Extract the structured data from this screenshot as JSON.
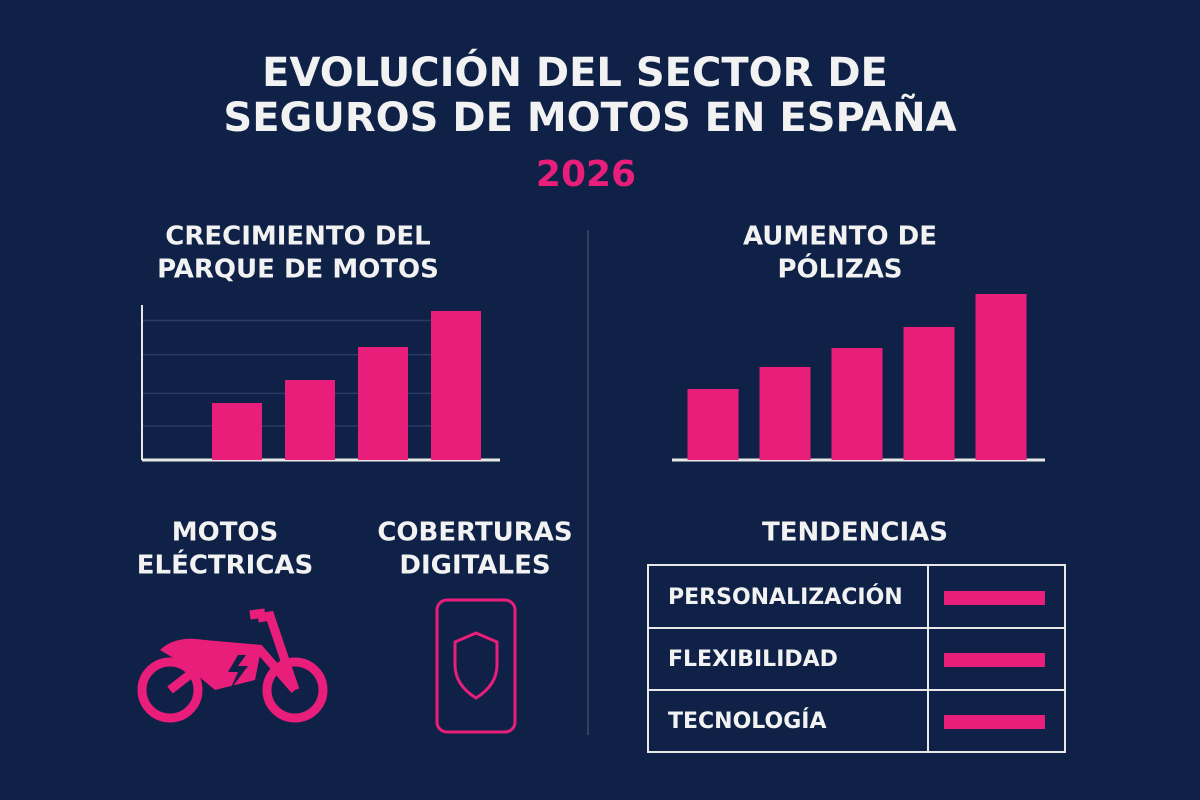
{
  "header": {
    "title": [
      "EVOLUCIÓN DEL SECTOR DE",
      "SEGUROS DE MOTOS EN ESPAÑA"
    ],
    "year": "2026"
  },
  "chart_data": [
    {
      "type": "bar",
      "title": [
        "CRECIMIENTO DEL",
        "PARQUE DE MOTOS"
      ],
      "categories": [
        null,
        null,
        null,
        null
      ],
      "values": [
        57,
        80,
        113,
        149
      ],
      "color": "#e91e7a",
      "ylim": [
        0,
        155
      ],
      "grid": true
    },
    {
      "type": "bar",
      "title": [
        "AUMENTO DE",
        "PÓLIZAS"
      ],
      "categories": [
        null,
        null,
        null,
        null,
        null
      ],
      "values": [
        71,
        93,
        112,
        133,
        166
      ],
      "color": "#e91e7a",
      "ylim": [
        0,
        170
      ],
      "grid": false
    }
  ],
  "features": [
    {
      "label": [
        "MOTOS",
        "ELÉCTRICAS"
      ]
    },
    {
      "label": [
        "COBERTURAS",
        "DIGITALES"
      ]
    }
  ],
  "trends": {
    "title": "TENDENCIAS",
    "rows": [
      "PERSONALIZACIÓN",
      "FLEXIBILIDAD",
      "TECNOLOGÍA"
    ]
  }
}
